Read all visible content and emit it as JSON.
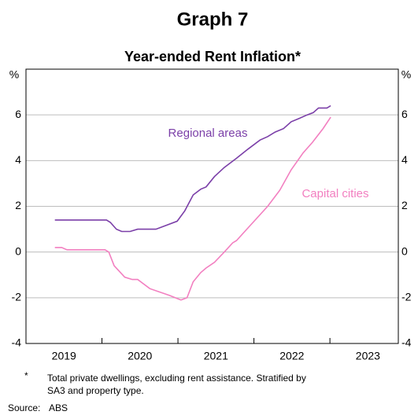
{
  "chart_data": {
    "type": "line",
    "title": "Graph 7",
    "subtitle": "Year-ended Rent Inflation*",
    "y_unit": "%",
    "xlim": [
      2019,
      2023.9
    ],
    "ylim": [
      -4,
      8
    ],
    "yticks": [
      -4,
      -2,
      0,
      2,
      4,
      6
    ],
    "xticks": [
      {
        "value": 2019.5,
        "label": "2019"
      },
      {
        "value": 2020.5,
        "label": "2020"
      },
      {
        "value": 2021.5,
        "label": "2021"
      },
      {
        "value": 2022.5,
        "label": "2022"
      },
      {
        "value": 2023.5,
        "label": "2023"
      }
    ],
    "grid": true,
    "series": [
      {
        "name": "Regional areas",
        "color": "#7b3fa8",
        "x": [
          2019.38,
          2020.06,
          2020.11,
          2020.19,
          2020.26,
          2020.37,
          2020.47,
          2020.71,
          2020.83,
          2020.99,
          2021.09,
          2021.2,
          2021.3,
          2021.37,
          2021.48,
          2021.61,
          2021.77,
          2021.92,
          2022.08,
          2022.18,
          2022.28,
          2022.39,
          2022.49,
          2022.6,
          2022.7,
          2022.78,
          2022.85,
          2022.96,
          2023.01
        ],
        "values": [
          1.4,
          1.4,
          1.3,
          1.0,
          0.9,
          0.9,
          1.0,
          1.0,
          1.15,
          1.35,
          1.8,
          2.5,
          2.75,
          2.85,
          3.3,
          3.7,
          4.1,
          4.5,
          4.9,
          5.05,
          5.25,
          5.4,
          5.7,
          5.85,
          6.0,
          6.1,
          6.3,
          6.3,
          6.4
        ]
      },
      {
        "name": "Capital cities",
        "color": "#f27fc0",
        "x": [
          2019.38,
          2019.47,
          2019.54,
          2019.69,
          2020.04,
          2020.09,
          2020.16,
          2020.3,
          2020.4,
          2020.47,
          2020.63,
          2020.89,
          2021.04,
          2021.12,
          2021.2,
          2021.3,
          2021.37,
          2021.48,
          2021.61,
          2021.72,
          2021.77,
          2021.92,
          2022.18,
          2022.34,
          2022.49,
          2022.65,
          2022.77,
          2022.91,
          2023.01
        ],
        "values": [
          0.2,
          0.2,
          0.1,
          0.1,
          0.1,
          0.0,
          -0.6,
          -1.1,
          -1.2,
          -1.2,
          -1.6,
          -1.9,
          -2.1,
          -2.0,
          -1.3,
          -0.9,
          -0.7,
          -0.45,
          0.0,
          0.4,
          0.5,
          1.05,
          2.0,
          2.7,
          3.6,
          4.35,
          4.8,
          5.4,
          5.9
        ]
      }
    ],
    "footnote_marker": "*",
    "footnote": [
      "Total private dwellings, excluding rent assistance. Stratified by",
      "SA3 and property type."
    ],
    "source_label": "Source:",
    "source": "ABS"
  }
}
